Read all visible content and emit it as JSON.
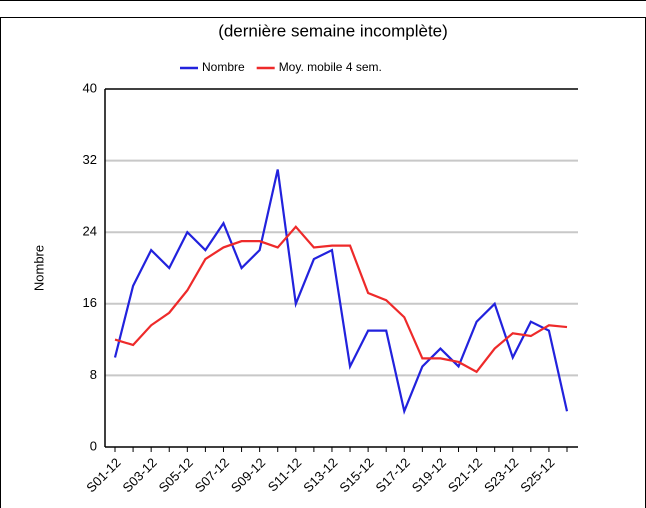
{
  "chart_data": {
    "type": "line",
    "subtitle": "(dernière semaine incomplète)",
    "y_label": "Nombre",
    "categories": [
      "S01-12",
      null,
      "S03-12",
      null,
      "S05-12",
      null,
      "S07-12",
      null,
      "S09-12",
      null,
      "S11-12",
      null,
      "S13-12",
      null,
      "S15-12",
      null,
      "S17-12",
      null,
      "S19-12",
      null,
      "S21-12",
      null,
      "S23-12",
      null,
      "S25-12",
      null
    ],
    "series": [
      {
        "name": "Nombre",
        "color": "#2222dd",
        "values": [
          10,
          18,
          22,
          20,
          24,
          22,
          25,
          20,
          22,
          31,
          16,
          21,
          22,
          9,
          13,
          13,
          4,
          9,
          11,
          9,
          14,
          16,
          10,
          14,
          13,
          4
        ]
      },
      {
        "name": "Moy. mobile 4 sem.",
        "color": "#ee2a2a",
        "values": [
          12,
          11.4,
          13.6,
          15,
          17.5,
          21,
          22.3,
          23,
          23,
          22.3,
          24.6,
          22.3,
          22.5,
          22.5,
          17.2,
          16.4,
          14.5,
          9.9,
          9.9,
          9.5,
          8.4,
          11,
          12.7,
          12.4,
          13.6,
          13.4
        ]
      }
    ],
    "ylim": [
      0,
      40
    ],
    "yticks": [
      0,
      8,
      16,
      24,
      32,
      40
    ],
    "grid": true,
    "legend": "top"
  }
}
